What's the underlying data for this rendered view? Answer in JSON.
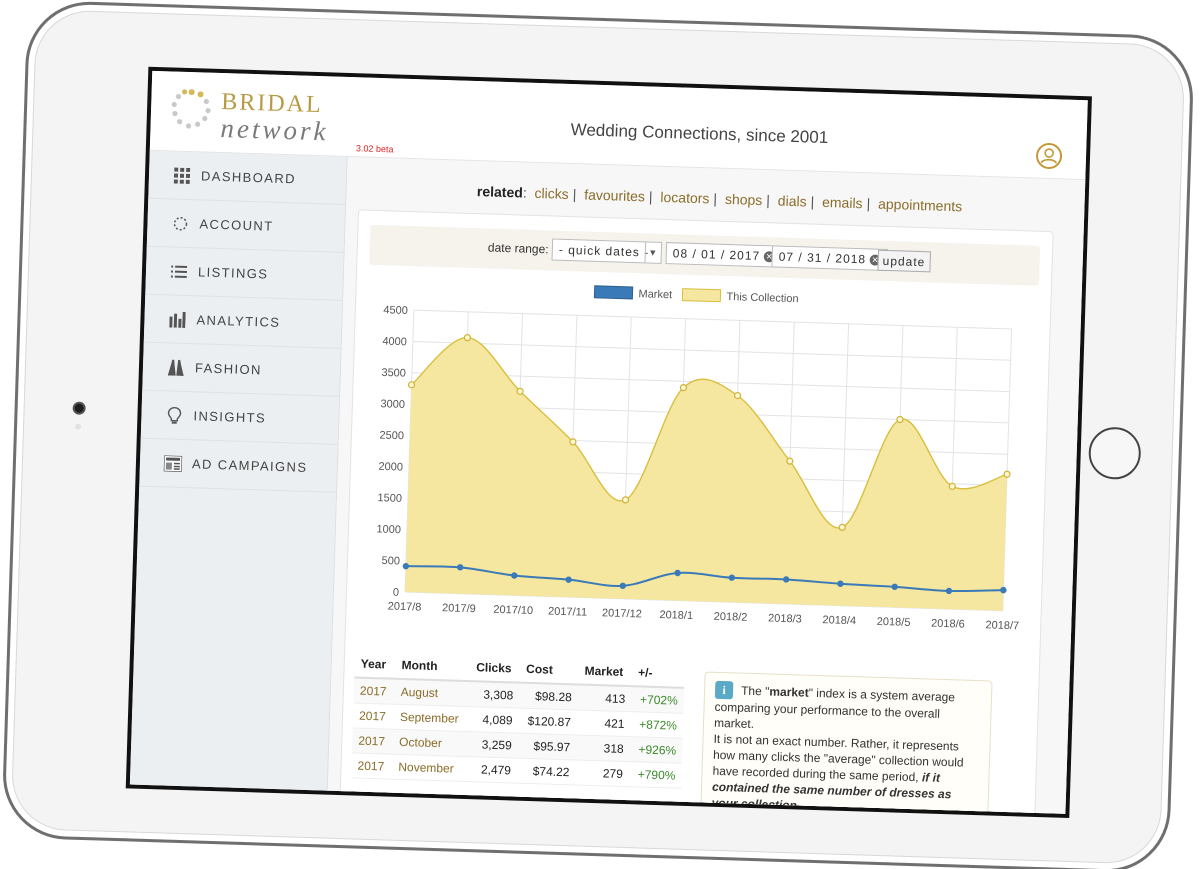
{
  "header": {
    "logo_word_1": "BRIDAL",
    "logo_word_2": "network",
    "version": "3.02 beta",
    "tagline": "Wedding Connections, since 2001",
    "user_icon": "user-circle-icon"
  },
  "sidebar": {
    "items": [
      {
        "label": "DASHBOARD",
        "icon": "grid-icon"
      },
      {
        "label": "ACCOUNT",
        "icon": "circle-dots-icon"
      },
      {
        "label": "LISTINGS",
        "icon": "list-icon"
      },
      {
        "label": "ANALYTICS",
        "icon": "bar-chart-icon"
      },
      {
        "label": "FASHION",
        "icon": "dress-icon"
      },
      {
        "label": "INSIGHTS",
        "icon": "lightbulb-icon"
      },
      {
        "label": "AD CAMPAIGNS",
        "icon": "newspaper-icon"
      }
    ]
  },
  "related": {
    "label": "related",
    "links": [
      "clicks",
      "favourites",
      "locators",
      "shops",
      "dials",
      "emails",
      "appointments"
    ]
  },
  "filters": {
    "label": "date range:",
    "quick_dates": "- quick dates -",
    "start_date": "08 / 01 / 2017",
    "end_date": "07 / 31 / 2018",
    "update_label": "update"
  },
  "chart_data": {
    "type": "area",
    "categories": [
      "2017/8",
      "2017/9",
      "2017/10",
      "2017/11",
      "2017/12",
      "2018/1",
      "2018/2",
      "2018/3",
      "2018/4",
      "2018/5",
      "2018/6",
      "2018/7"
    ],
    "series": [
      {
        "name": "Market",
        "values": [
          413,
          421,
          318,
          279,
          208,
          440,
          392,
          391,
          350,
          328,
          290,
          330
        ],
        "color": "#3a7ab8"
      },
      {
        "name": "This Collection",
        "values": [
          3308,
          4089,
          3259,
          2479,
          1580,
          3400,
          3300,
          2280,
          1250,
          3000,
          1960,
          2180
        ],
        "color": "#f5e6a0"
      }
    ],
    "yticks": [
      0,
      500,
      1000,
      1500,
      2000,
      2500,
      3000,
      3500,
      4000,
      4500
    ],
    "ylim": [
      0,
      4500
    ],
    "grid": true,
    "legend_position": "top-center"
  },
  "table": {
    "headers": [
      "Year",
      "Month",
      "Clicks",
      "Cost",
      "Market",
      "+/-"
    ],
    "rows": [
      [
        "2017",
        "August",
        "3,308",
        "$98.28",
        "413",
        "+702%"
      ],
      [
        "2017",
        "September",
        "4,089",
        "$120.87",
        "421",
        "+872%"
      ],
      [
        "2017",
        "October",
        "3,259",
        "$95.97",
        "318",
        "+926%"
      ],
      [
        "2017",
        "November",
        "2,479",
        "$74.22",
        "279",
        "+790%"
      ]
    ]
  },
  "info": {
    "icon": "info-icon",
    "line_1_pre": "The \"",
    "line_1_bold": "market",
    "line_1_post": "\" index is a system average comparing your performance to the overall market.",
    "line_2": "It is not an exact number. Rather, it represents how many clicks the \"average\" collection would have recorded during the same period,",
    "line_2_em": "if it contained the same number of dresses as your collection",
    "line_2_end": "."
  },
  "colors": {
    "brand_gold": "#b89a45",
    "link_brown": "#8a6d2a",
    "market_blue": "#3a7ab8",
    "collection_fill": "#f5e6a0",
    "positive_green": "#3a8a2a"
  }
}
